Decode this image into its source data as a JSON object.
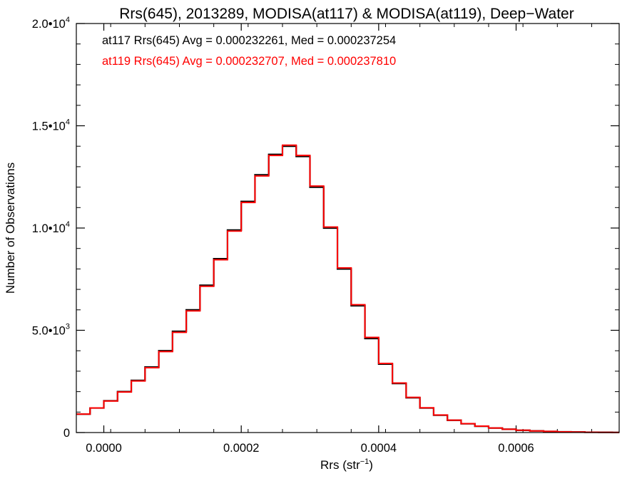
{
  "chart_data": {
    "type": "line",
    "title": "Rrs(645), 2013289, MODISA(at117) & MODISA(at119), Deep−Water",
    "xlabel": "Rrs (str",
    "xlabel_sup": "−1",
    "xlabel_end": ")",
    "ylabel": "Number of Observations",
    "xlim": [
      -4e-05,
      0.00075
    ],
    "ylim": [
      0,
      20000
    ],
    "x_ticks": [
      {
        "value": 0.0,
        "label": "0.0000"
      },
      {
        "value": 0.0002,
        "label": "0.0002"
      },
      {
        "value": 0.0004,
        "label": "0.0004"
      },
      {
        "value": 0.0006,
        "label": "0.0006"
      }
    ],
    "y_ticks": [
      {
        "value": 0,
        "label": "0",
        "sup": ""
      },
      {
        "value": 5000,
        "label": "5.0•10",
        "sup": "3"
      },
      {
        "value": 10000,
        "label": "1.0•10",
        "sup": "4"
      },
      {
        "value": 15000,
        "label": "1.5•10",
        "sup": "4"
      },
      {
        "value": 20000,
        "label": "2.0•10",
        "sup": "4"
      }
    ],
    "grid": false,
    "series": [
      {
        "name": "at117",
        "color": "#000000",
        "label": "at117 Rrs(645) Avg = 0.000232261, Med = 0.000237254",
        "x": [
          -4e-05,
          -2e-05,
          0.0,
          2e-05,
          4e-05,
          6e-05,
          8e-05,
          0.0001,
          0.00012,
          0.00014,
          0.00016,
          0.00018,
          0.0002,
          0.00022,
          0.00024,
          0.00026,
          0.00028,
          0.0003,
          0.00032,
          0.00034,
          0.00036,
          0.00038,
          0.0004,
          0.00042,
          0.00044,
          0.00046,
          0.00048,
          0.0005,
          0.00052,
          0.00054,
          0.00056,
          0.00058,
          0.0006,
          0.00062,
          0.00064,
          0.00066,
          0.00068,
          0.0007,
          0.00072,
          0.00074,
          0.00075
        ],
        "y": [
          900,
          1200,
          1550,
          2000,
          2550,
          3200,
          4000,
          4950,
          6000,
          7200,
          8500,
          9900,
          11300,
          12600,
          13600,
          14000,
          13500,
          12000,
          10000,
          8000,
          6200,
          4600,
          3350,
          2400,
          1700,
          1200,
          850,
          600,
          430,
          310,
          220,
          160,
          110,
          80,
          55,
          35,
          25,
          15,
          10,
          5,
          5
        ]
      },
      {
        "name": "at119",
        "color": "#ff0000",
        "label": "at119 Rrs(645) Avg = 0.000232707, Med = 0.000237810",
        "x": [
          -4e-05,
          -2e-05,
          0.0,
          2e-05,
          4e-05,
          6e-05,
          8e-05,
          0.0001,
          0.00012,
          0.00014,
          0.00016,
          0.00018,
          0.0002,
          0.00022,
          0.00024,
          0.00026,
          0.00028,
          0.0003,
          0.00032,
          0.00034,
          0.00036,
          0.00038,
          0.0004,
          0.00042,
          0.00044,
          0.00046,
          0.00048,
          0.0005,
          0.00052,
          0.00054,
          0.00056,
          0.00058,
          0.0006,
          0.00062,
          0.00064,
          0.00066,
          0.00068,
          0.0007,
          0.00072,
          0.00074,
          0.00075
        ],
        "y": [
          900,
          1200,
          1540,
          1980,
          2520,
          3170,
          3960,
          4900,
          5950,
          7150,
          8450,
          9850,
          11250,
          12550,
          13550,
          14050,
          13550,
          12050,
          10050,
          8050,
          6250,
          4650,
          3380,
          2420,
          1720,
          1210,
          860,
          605,
          435,
          312,
          222,
          160,
          112,
          80,
          56,
          36,
          25,
          15,
          10,
          5,
          5
        ]
      }
    ]
  }
}
